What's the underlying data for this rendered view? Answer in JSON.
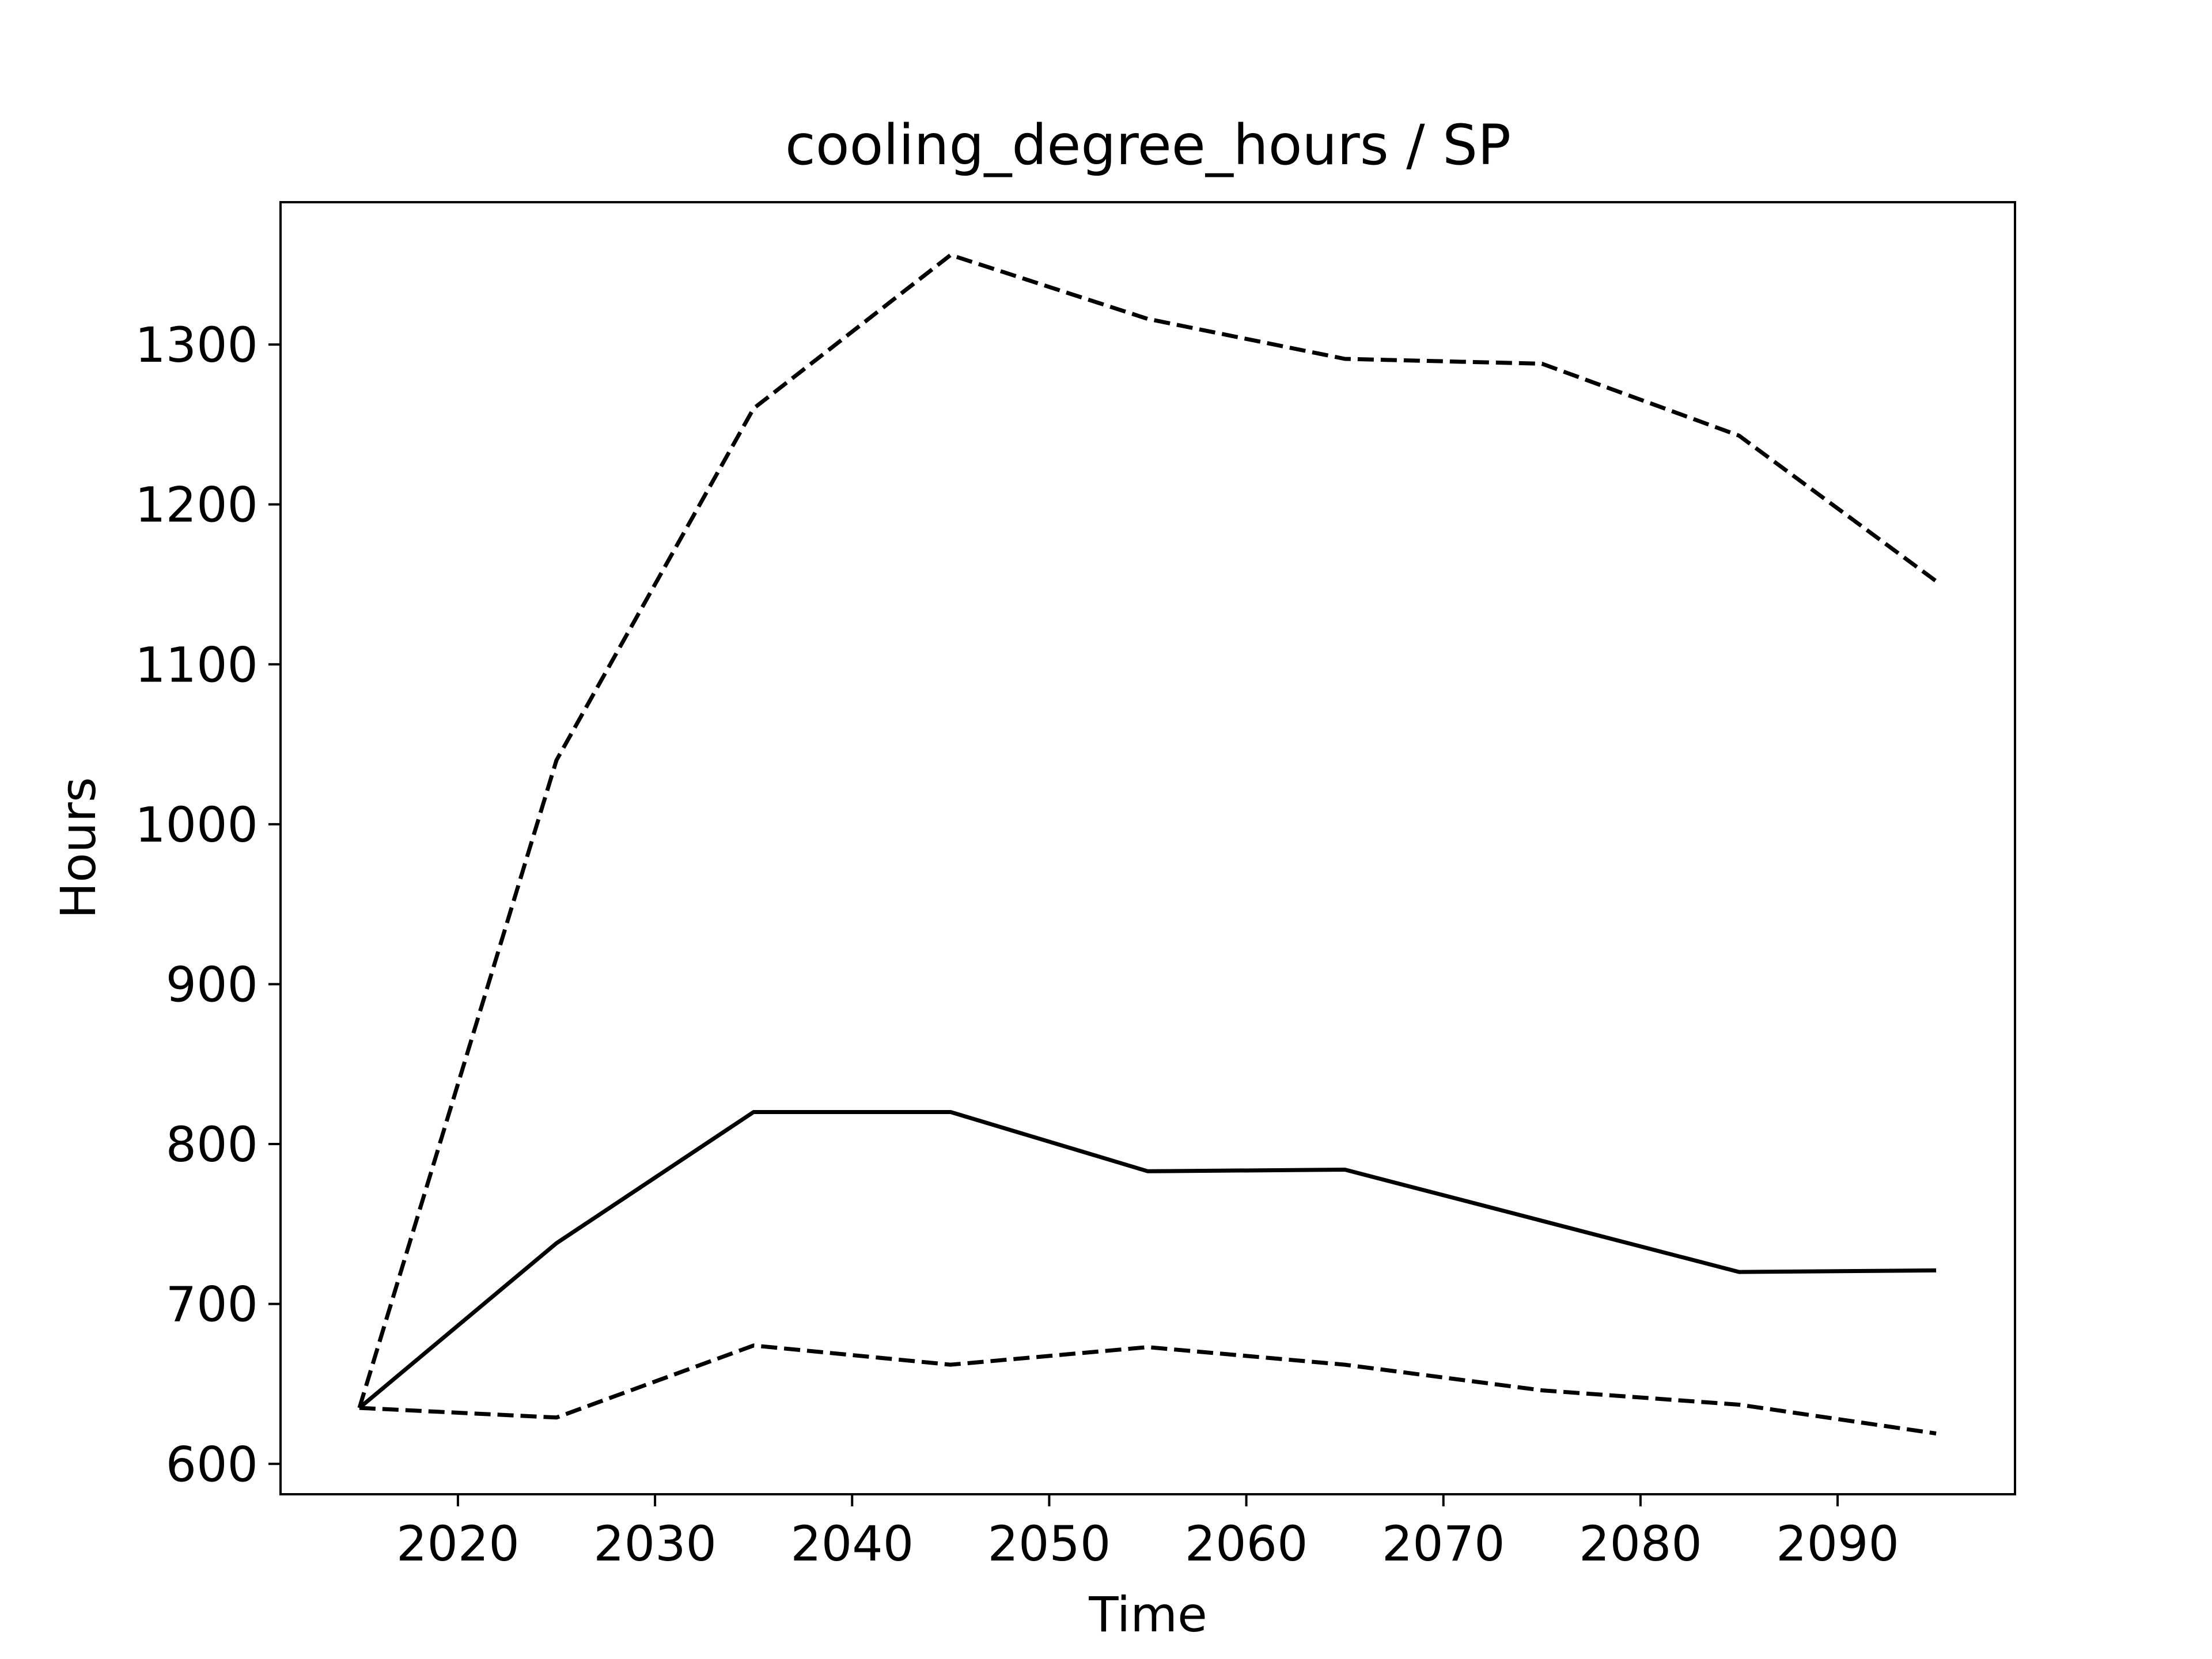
{
  "chart_data": {
    "type": "line",
    "title": "cooling_degree_hours / SP",
    "xlabel": "Time",
    "ylabel": "Hours",
    "xlim": [
      2011,
      2099
    ],
    "ylim": [
      581,
      1389
    ],
    "xticks": [
      2020,
      2030,
      2040,
      2050,
      2060,
      2070,
      2080,
      2090
    ],
    "yticks": [
      600,
      700,
      800,
      900,
      1000,
      1100,
      1200,
      1300
    ],
    "grid": false,
    "x": [
      2015,
      2025,
      2035,
      2045,
      2055,
      2065,
      2075,
      2085,
      2095
    ],
    "series": [
      {
        "style": "solid",
        "color": "#000000",
        "values": [
          635,
          738,
          820,
          820,
          783,
          784,
          752,
          720,
          721
        ]
      },
      {
        "style": "dashed",
        "color": "#000000",
        "values": [
          635,
          1040,
          1260,
          1356,
          1316,
          1291,
          1288,
          1243,
          1152
        ]
      },
      {
        "style": "dashed",
        "color": "#000000",
        "values": [
          635,
          629,
          674,
          662,
          673,
          662,
          646,
          637,
          619
        ]
      }
    ]
  }
}
